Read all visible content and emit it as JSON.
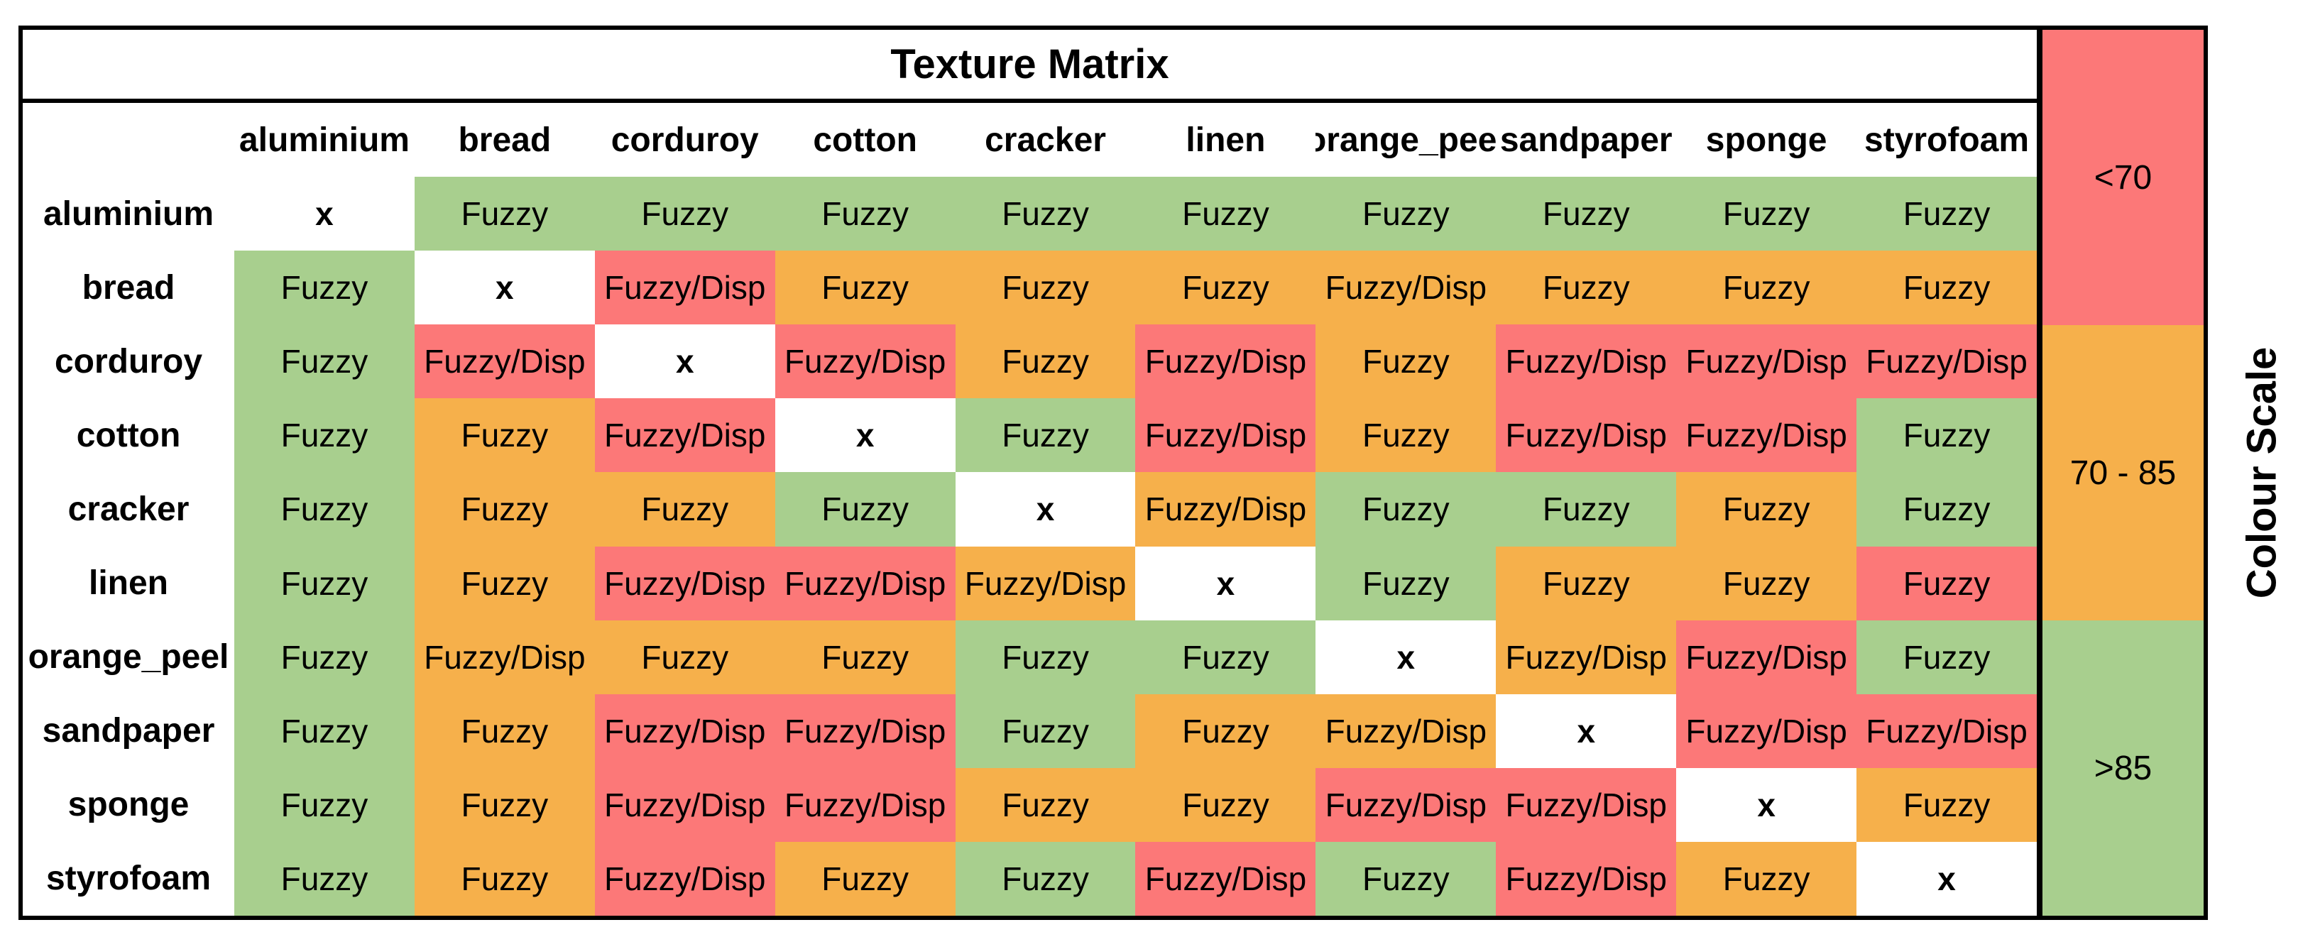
{
  "title": "Texture Matrix",
  "scale_title": "Colour Scale",
  "colors": {
    "red": "#fc7878",
    "orange": "#f6b04b",
    "green": "#a8cf8e",
    "diagonal": "#ffffff"
  },
  "scale": [
    {
      "label": "<70",
      "color": "red"
    },
    {
      "label": "70 - 85",
      "color": "orange"
    },
    {
      "label": ">85",
      "color": "green"
    }
  ],
  "columns": [
    "aluminium",
    "bread",
    "corduroy",
    "cotton",
    "cracker",
    "linen",
    "orange_peel",
    "sandpaper",
    "sponge",
    "styrofoam"
  ],
  "rows": [
    {
      "label": "aluminium",
      "cells": [
        {
          "text": "x",
          "color": "diagonal"
        },
        {
          "text": "Fuzzy",
          "color": "green"
        },
        {
          "text": "Fuzzy",
          "color": "green"
        },
        {
          "text": "Fuzzy",
          "color": "green"
        },
        {
          "text": "Fuzzy",
          "color": "green"
        },
        {
          "text": "Fuzzy",
          "color": "green"
        },
        {
          "text": "Fuzzy",
          "color": "green"
        },
        {
          "text": "Fuzzy",
          "color": "green"
        },
        {
          "text": "Fuzzy",
          "color": "green"
        },
        {
          "text": "Fuzzy",
          "color": "green"
        }
      ]
    },
    {
      "label": "bread",
      "cells": [
        {
          "text": "Fuzzy",
          "color": "green"
        },
        {
          "text": "x",
          "color": "diagonal"
        },
        {
          "text": "Fuzzy/Disp",
          "color": "red"
        },
        {
          "text": "Fuzzy",
          "color": "orange"
        },
        {
          "text": "Fuzzy",
          "color": "orange"
        },
        {
          "text": "Fuzzy",
          "color": "orange"
        },
        {
          "text": "Fuzzy/Disp",
          "color": "orange"
        },
        {
          "text": "Fuzzy",
          "color": "orange"
        },
        {
          "text": "Fuzzy",
          "color": "orange"
        },
        {
          "text": "Fuzzy",
          "color": "orange"
        }
      ]
    },
    {
      "label": "corduroy",
      "cells": [
        {
          "text": "Fuzzy",
          "color": "green"
        },
        {
          "text": "Fuzzy/Disp",
          "color": "red"
        },
        {
          "text": "x",
          "color": "diagonal"
        },
        {
          "text": "Fuzzy/Disp",
          "color": "red"
        },
        {
          "text": "Fuzzy",
          "color": "orange"
        },
        {
          "text": "Fuzzy/Disp",
          "color": "red"
        },
        {
          "text": "Fuzzy",
          "color": "orange"
        },
        {
          "text": "Fuzzy/Disp",
          "color": "red"
        },
        {
          "text": "Fuzzy/Disp",
          "color": "red"
        },
        {
          "text": "Fuzzy/Disp",
          "color": "red"
        }
      ]
    },
    {
      "label": "cotton",
      "cells": [
        {
          "text": "Fuzzy",
          "color": "green"
        },
        {
          "text": "Fuzzy",
          "color": "orange"
        },
        {
          "text": "Fuzzy/Disp",
          "color": "red"
        },
        {
          "text": "x",
          "color": "diagonal"
        },
        {
          "text": "Fuzzy",
          "color": "green"
        },
        {
          "text": "Fuzzy/Disp",
          "color": "red"
        },
        {
          "text": "Fuzzy",
          "color": "orange"
        },
        {
          "text": "Fuzzy/Disp",
          "color": "red"
        },
        {
          "text": "Fuzzy/Disp",
          "color": "red"
        },
        {
          "text": "Fuzzy",
          "color": "green"
        }
      ]
    },
    {
      "label": "cracker",
      "cells": [
        {
          "text": "Fuzzy",
          "color": "green"
        },
        {
          "text": "Fuzzy",
          "color": "orange"
        },
        {
          "text": "Fuzzy",
          "color": "orange"
        },
        {
          "text": "Fuzzy",
          "color": "green"
        },
        {
          "text": "x",
          "color": "diagonal"
        },
        {
          "text": "Fuzzy/Disp",
          "color": "orange"
        },
        {
          "text": "Fuzzy",
          "color": "green"
        },
        {
          "text": "Fuzzy",
          "color": "green"
        },
        {
          "text": "Fuzzy",
          "color": "orange"
        },
        {
          "text": "Fuzzy",
          "color": "green"
        }
      ]
    },
    {
      "label": "linen",
      "cells": [
        {
          "text": "Fuzzy",
          "color": "green"
        },
        {
          "text": "Fuzzy",
          "color": "orange"
        },
        {
          "text": "Fuzzy/Disp",
          "color": "red"
        },
        {
          "text": "Fuzzy/Disp",
          "color": "red"
        },
        {
          "text": "Fuzzy/Disp",
          "color": "orange"
        },
        {
          "text": "x",
          "color": "diagonal"
        },
        {
          "text": "Fuzzy",
          "color": "green"
        },
        {
          "text": "Fuzzy",
          "color": "orange"
        },
        {
          "text": "Fuzzy",
          "color": "orange"
        },
        {
          "text": "Fuzzy",
          "color": "red"
        }
      ]
    },
    {
      "label": "orange_peel",
      "cells": [
        {
          "text": "Fuzzy",
          "color": "green"
        },
        {
          "text": "Fuzzy/Disp",
          "color": "orange"
        },
        {
          "text": "Fuzzy",
          "color": "orange"
        },
        {
          "text": "Fuzzy",
          "color": "orange"
        },
        {
          "text": "Fuzzy",
          "color": "green"
        },
        {
          "text": "Fuzzy",
          "color": "green"
        },
        {
          "text": "x",
          "color": "diagonal"
        },
        {
          "text": "Fuzzy/Disp",
          "color": "orange"
        },
        {
          "text": "Fuzzy/Disp",
          "color": "red"
        },
        {
          "text": "Fuzzy",
          "color": "green"
        }
      ]
    },
    {
      "label": "sandpaper",
      "cells": [
        {
          "text": "Fuzzy",
          "color": "green"
        },
        {
          "text": "Fuzzy",
          "color": "orange"
        },
        {
          "text": "Fuzzy/Disp",
          "color": "red"
        },
        {
          "text": "Fuzzy/Disp",
          "color": "red"
        },
        {
          "text": "Fuzzy",
          "color": "green"
        },
        {
          "text": "Fuzzy",
          "color": "orange"
        },
        {
          "text": "Fuzzy/Disp",
          "color": "orange"
        },
        {
          "text": "x",
          "color": "diagonal"
        },
        {
          "text": "Fuzzy/Disp",
          "color": "red"
        },
        {
          "text": "Fuzzy/Disp",
          "color": "red"
        }
      ]
    },
    {
      "label": "sponge",
      "cells": [
        {
          "text": "Fuzzy",
          "color": "green"
        },
        {
          "text": "Fuzzy",
          "color": "orange"
        },
        {
          "text": "Fuzzy/Disp",
          "color": "red"
        },
        {
          "text": "Fuzzy/Disp",
          "color": "red"
        },
        {
          "text": "Fuzzy",
          "color": "orange"
        },
        {
          "text": "Fuzzy",
          "color": "orange"
        },
        {
          "text": "Fuzzy/Disp",
          "color": "red"
        },
        {
          "text": "Fuzzy/Disp",
          "color": "red"
        },
        {
          "text": "x",
          "color": "diagonal"
        },
        {
          "text": "Fuzzy",
          "color": "orange"
        }
      ]
    },
    {
      "label": "styrofoam",
      "cells": [
        {
          "text": "Fuzzy",
          "color": "green"
        },
        {
          "text": "Fuzzy",
          "color": "orange"
        },
        {
          "text": "Fuzzy/Disp",
          "color": "red"
        },
        {
          "text": "Fuzzy",
          "color": "orange"
        },
        {
          "text": "Fuzzy",
          "color": "green"
        },
        {
          "text": "Fuzzy/Disp",
          "color": "red"
        },
        {
          "text": "Fuzzy",
          "color": "green"
        },
        {
          "text": "Fuzzy/Disp",
          "color": "red"
        },
        {
          "text": "Fuzzy",
          "color": "orange"
        },
        {
          "text": "x",
          "color": "diagonal"
        }
      ]
    }
  ]
}
